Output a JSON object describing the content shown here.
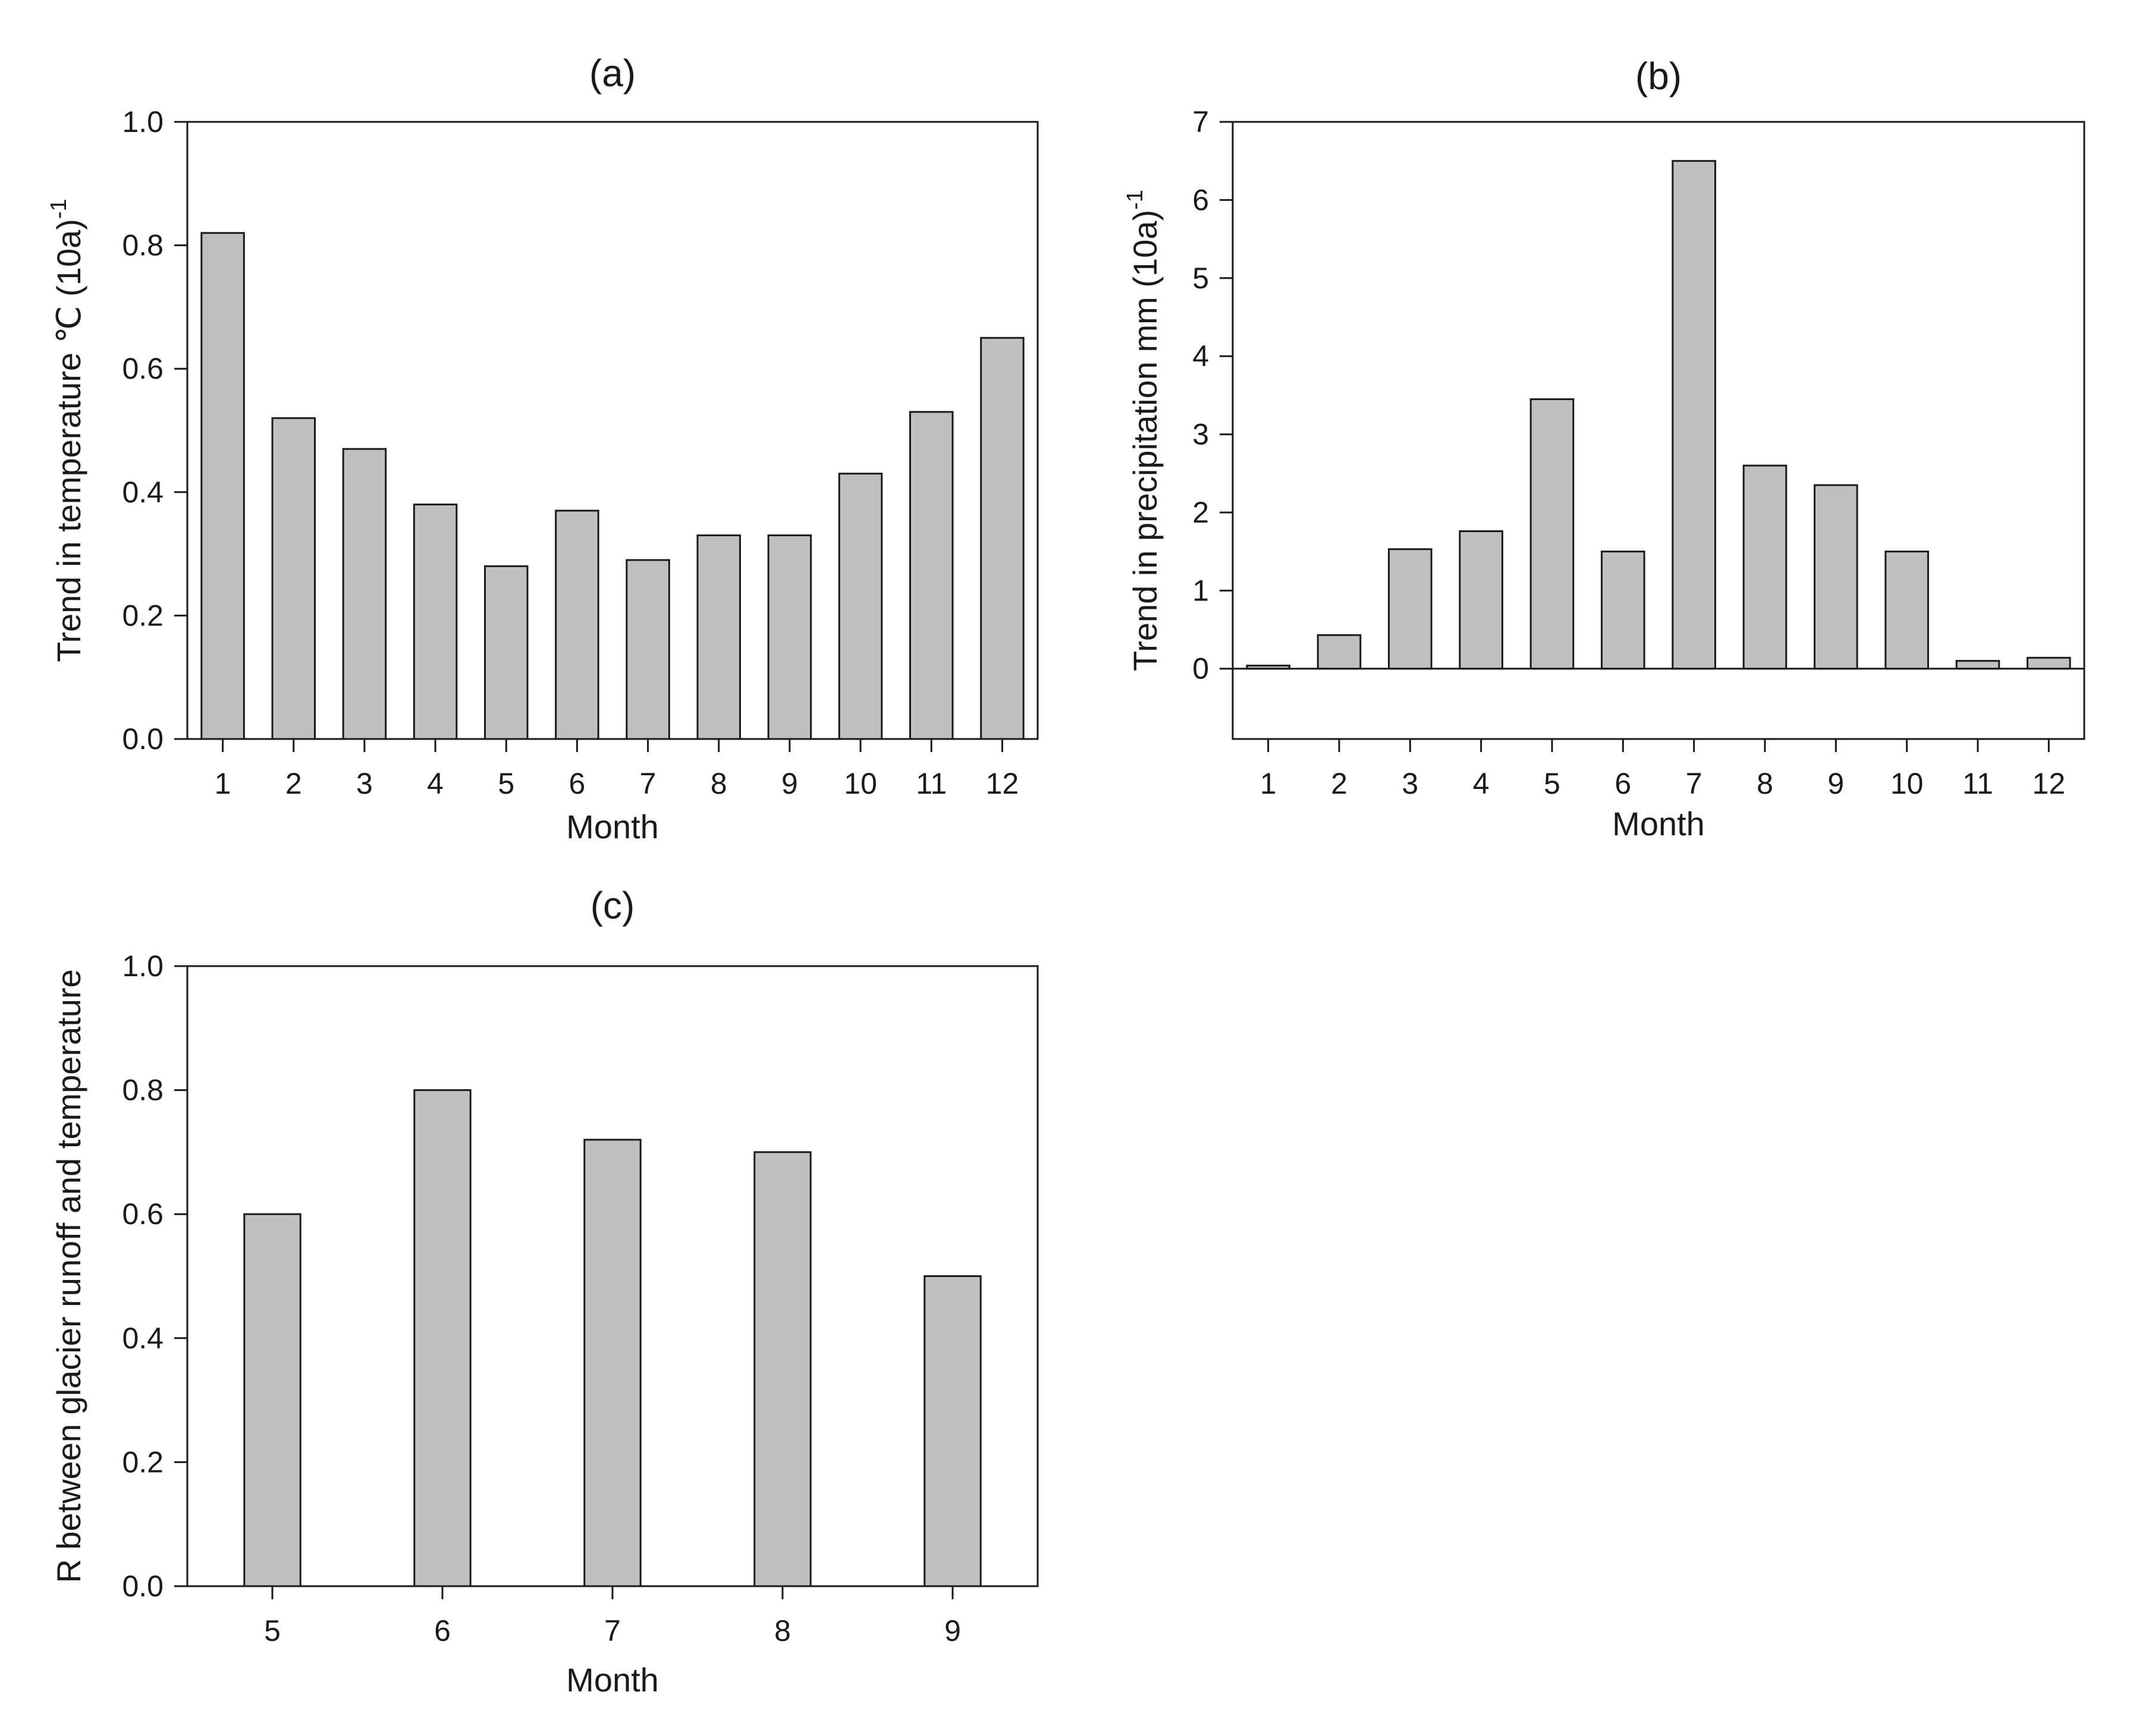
{
  "chart_data": [
    {
      "type": "bar",
      "title": "(a)",
      "xlabel": "Month",
      "ylabel": "Trend in temperature ℃ (10a)",
      "ylabel_superscript": "-1",
      "categories": [
        "1",
        "2",
        "3",
        "4",
        "5",
        "6",
        "7",
        "8",
        "9",
        "10",
        "11",
        "12"
      ],
      "values": [
        0.82,
        0.52,
        0.47,
        0.38,
        0.28,
        0.37,
        0.29,
        0.33,
        0.33,
        0.43,
        0.53,
        0.65
      ],
      "ylim": [
        0,
        1.0
      ],
      "yticks": [
        "0.0",
        "0.2",
        "0.4",
        "0.6",
        "0.8",
        "1.0"
      ],
      "grid": false,
      "bar_color": "#c0c0c0"
    },
    {
      "type": "bar",
      "title": "(b)",
      "xlabel": "Month",
      "ylabel": "Trend in precipitation  mm (10a)",
      "ylabel_superscript": "-1",
      "categories": [
        "1",
        "2",
        "3",
        "4",
        "5",
        "6",
        "7",
        "8",
        "9",
        "10",
        "11",
        "12"
      ],
      "values": [
        0.04,
        0.43,
        1.53,
        1.76,
        3.45,
        1.5,
        6.5,
        2.6,
        2.35,
        1.5,
        0.1,
        0.14
      ],
      "ylim": [
        -0.9,
        7
      ],
      "yticks": [
        "0",
        "1",
        "2",
        "3",
        "4",
        "5",
        "6",
        "7"
      ],
      "grid": false,
      "bar_color": "#c0c0c0"
    },
    {
      "type": "bar",
      "title": "(c)",
      "xlabel": "Month",
      "ylabel": "R between glacier runoff and temperature",
      "categories": [
        "5",
        "6",
        "7",
        "8",
        "9"
      ],
      "values": [
        0.6,
        0.8,
        0.72,
        0.7,
        0.5
      ],
      "ylim": [
        0,
        1.0
      ],
      "yticks": [
        "0.0",
        "0.2",
        "0.4",
        "0.6",
        "0.8",
        "1.0"
      ],
      "grid": false,
      "bar_color": "#c0c0c0"
    }
  ]
}
